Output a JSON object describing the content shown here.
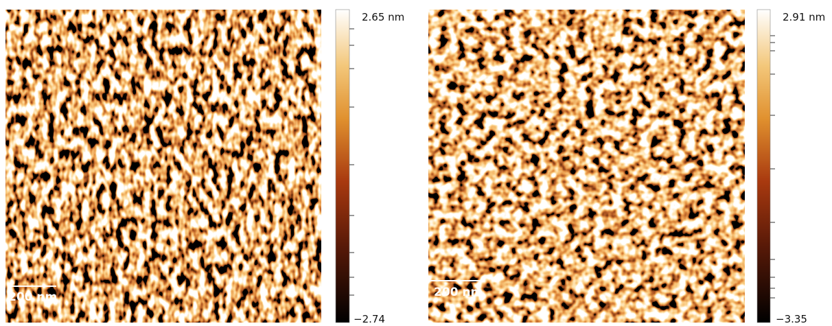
{
  "panels": [
    {
      "scale_bar": "200 nm",
      "colorbar": {
        "max": "2.65 nm",
        "min": "−2.74"
      }
    },
    {
      "scale_bar": "200 nm",
      "colorbar": {
        "max": "2.91 nm",
        "min": "−3.35"
      }
    }
  ]
}
